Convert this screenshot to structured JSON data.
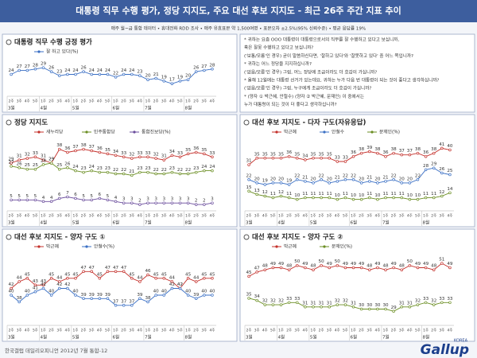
{
  "title": "대통령 직무 수행 평가, 정당 지지도, 주요 대선 후보 지지도 - 최근 26주 주간 지표 추이",
  "subtitle": "매주 월~금 통합 데이터 • 휴대전화 RDD 조사 • 매주 유효표본 약 1,500여명 • 표본오차 ±2.5%(95% 신뢰수준) • 평균 응답률 19%",
  "x_axis": [
    {
      "month": "3월",
      "weeks": [
        "2주",
        "3주",
        "4주",
        "5주"
      ]
    },
    {
      "month": "4월",
      "weeks": [
        "1주",
        "2주",
        "3주",
        "4주"
      ]
    },
    {
      "month": "5월",
      "weeks": [
        "1주",
        "2주",
        "3주",
        "4주",
        "5주"
      ]
    },
    {
      "month": "6월",
      "weeks": [
        "1주",
        "2주",
        "3주",
        "4주"
      ]
    },
    {
      "month": "7월",
      "weeks": [
        "1주",
        "2주",
        "3주",
        "4주",
        "5주"
      ]
    },
    {
      "month": "8월",
      "weeks": [
        "1주",
        "2주",
        "3주",
        "4주"
      ]
    }
  ],
  "questions": [
    "* 귀하는 요즘 OOO 대통령이 대통령으로서의 직무를 잘 수행하고 있다고 보십니까,",
    "혹은 잘못 수행하고 있다고 보십니까?",
    "('보통/모름'인 경우) 굳이 말씀하신다면, '잘하고 있다'와 '잘못하고 있다' 중 어느 쪽입니까?",
    "* 귀하는 어느 정당을 지지하십니까?",
    "('없음/모름'인 경우) 그럼, 어느 정당에 조금이라도 더 호감이 가십니까?",
    "* 올해 12월에는 대통령 선거가 있는데요, 귀하는 누가 다음 번 대통령이 되는 것이 좋다고 생각하십니까?",
    "('없음/모름'인 경우) 그럼, 누구에게 조금이라도 더 호감이 가십니까?",
    "* (양자 ① 박근혜, 안철수) (양자 ② 박근혜, 문재인) 이 중에서는",
    "누가 대통령이 되는 것이 더 좋다고 생각하십니까?"
  ],
  "chart_data": [
    {
      "type": "line",
      "title": "대통령 직무 수행 긍정 평가",
      "ylim": [
        10,
        35
      ],
      "series": [
        {
          "name": "잘 하고 있다(%)",
          "color": "#3a6fc4",
          "values": [
            24,
            27,
            27,
            28,
            29,
            26,
            23,
            24,
            24,
            26,
            24,
            24,
            24,
            22,
            24,
            24,
            23,
            20,
            21,
            19,
            17,
            19,
            20,
            26,
            27,
            28
          ]
        }
      ]
    },
    {
      "type": "line",
      "title": "정당 지지도",
      "ylim": [
        0,
        44
      ],
      "series": [
        {
          "name": "새누리당",
          "color": "#c4302b",
          "values": [
            29,
            31,
            32,
            33,
            31,
            29,
            38,
            36,
            37,
            38,
            37,
            36,
            35,
            34,
            33,
            32,
            33,
            33,
            32,
            31,
            34,
            33,
            35,
            36,
            35,
            33
          ]
        },
        {
          "name": "민주통합당",
          "color": "#6b8e23",
          "values": [
            27,
            26,
            25,
            25,
            28,
            29,
            25,
            26,
            24,
            23,
            24,
            23,
            23,
            22,
            22,
            21,
            23,
            23,
            22,
            22,
            23,
            22,
            22,
            23,
            24,
            24
          ]
        },
        {
          "name": "통합진보당(%)",
          "color": "#6a4c9c",
          "values": [
            5,
            5,
            5,
            5,
            4,
            4,
            6,
            7,
            6,
            5,
            5,
            6,
            5,
            4,
            3,
            3,
            2,
            3,
            3,
            3,
            3,
            3,
            3,
            2,
            2,
            3
          ]
        }
      ]
    },
    {
      "type": "line",
      "title": "대선 후보 지지도 - 다자 구도(자유응답)",
      "ylim": [
        5,
        46
      ],
      "series": [
        {
          "name": "박근혜",
          "color": "#c4302b",
          "values": [
            31,
            35,
            35,
            35,
            35,
            36,
            35,
            34,
            35,
            35,
            35,
            33,
            33,
            36,
            38,
            39,
            38,
            36,
            38,
            37,
            37,
            38,
            36,
            38,
            41,
            40
          ]
        },
        {
          "name": "안철수",
          "color": "#3a6fc4",
          "values": [
            22,
            20,
            19,
            20,
            20,
            19,
            22,
            21,
            20,
            22,
            20,
            21,
            22,
            22,
            20,
            21,
            20,
            21,
            22,
            20,
            20,
            22,
            28,
            29,
            26,
            25
          ]
        },
        {
          "name": "문재인(%)",
          "color": "#6b8e23",
          "values": [
            15,
            13,
            12,
            11,
            12,
            11,
            10,
            11,
            11,
            11,
            11,
            10,
            11,
            10,
            10,
            11,
            10,
            11,
            11,
            11,
            10,
            10,
            11,
            11,
            12,
            14
          ]
        }
      ]
    },
    {
      "type": "line",
      "title": "대선 후보 지지도 - 양자 구도 ①",
      "ylim": [
        32,
        52
      ],
      "series": [
        {
          "name": "박근혜",
          "color": "#c4302b",
          "values": [
            42,
            44,
            45,
            43,
            43,
            45,
            44,
            45,
            45,
            47,
            47,
            45,
            47,
            47,
            47,
            45,
            44,
            46,
            45,
            45,
            44,
            42,
            45,
            44,
            45,
            45
          ]
        },
        {
          "name": "안철수(%)",
          "color": "#3a6fc4",
          "values": [
            40,
            38,
            40,
            41,
            42,
            40,
            42,
            42,
            40,
            39,
            39,
            39,
            39,
            37,
            37,
            37,
            39,
            38,
            40,
            40,
            42,
            42,
            40,
            39,
            40,
            40
          ]
        }
      ]
    },
    {
      "type": "line",
      "title": "대선 후보 지지도 - 양자 구도 ②",
      "ylim": [
        24,
        55
      ],
      "series": [
        {
          "name": "박근혜",
          "color": "#c4302b",
          "values": [
            45,
            47,
            48,
            49,
            49,
            48,
            50,
            49,
            48,
            50,
            49,
            50,
            49,
            49,
            49,
            48,
            49,
            48,
            49,
            48,
            50,
            49,
            49,
            48,
            51,
            49
          ]
        },
        {
          "name": "문재인(%)",
          "color": "#6b8e23",
          "values": [
            35,
            34,
            32,
            32,
            32,
            33,
            33,
            31,
            31,
            31,
            31,
            32,
            32,
            31,
            30,
            30,
            30,
            30,
            29,
            31,
            31,
            32,
            33,
            32,
            33,
            33
          ]
        }
      ]
    }
  ],
  "footer": "한국갤럽 데일리오피니언 2012년 7월 통합-12",
  "logo": {
    "name": "Gallup",
    "sub": "KOREA"
  }
}
